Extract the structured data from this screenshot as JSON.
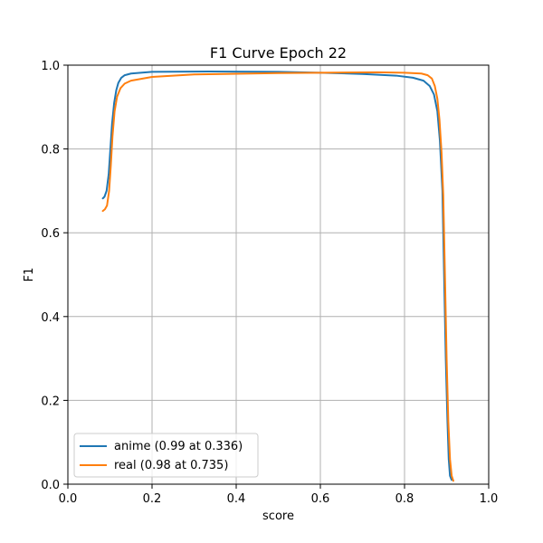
{
  "chart_data": {
    "type": "line",
    "title": "F1 Curve Epoch 22",
    "xlabel": "score",
    "ylabel": "F1",
    "xlim": [
      0.0,
      1.0
    ],
    "ylim": [
      0.0,
      1.0
    ],
    "xticks": [
      "0.0",
      "0.2",
      "0.4",
      "0.6",
      "0.8",
      "1.0"
    ],
    "yticks": [
      "0.0",
      "0.2",
      "0.4",
      "0.6",
      "0.8",
      "1.0"
    ],
    "grid": true,
    "legend_position": "lower-left",
    "series": [
      {
        "name": "anime (0.99 at 0.336)",
        "color": "#1f77b4",
        "points": [
          [
            0.083,
            0.682
          ],
          [
            0.087,
            0.686
          ],
          [
            0.092,
            0.7
          ],
          [
            0.097,
            0.74
          ],
          [
            0.101,
            0.8
          ],
          [
            0.105,
            0.86
          ],
          [
            0.11,
            0.91
          ],
          [
            0.115,
            0.94
          ],
          [
            0.12,
            0.958
          ],
          [
            0.127,
            0.97
          ],
          [
            0.135,
            0.976
          ],
          [
            0.15,
            0.98
          ],
          [
            0.2,
            0.984
          ],
          [
            0.336,
            0.985
          ],
          [
            0.5,
            0.984
          ],
          [
            0.6,
            0.982
          ],
          [
            0.7,
            0.979
          ],
          [
            0.78,
            0.975
          ],
          [
            0.82,
            0.97
          ],
          [
            0.845,
            0.963
          ],
          [
            0.86,
            0.95
          ],
          [
            0.87,
            0.93
          ],
          [
            0.878,
            0.89
          ],
          [
            0.884,
            0.82
          ],
          [
            0.89,
            0.7
          ],
          [
            0.894,
            0.5
          ],
          [
            0.898,
            0.3
          ],
          [
            0.902,
            0.15
          ],
          [
            0.905,
            0.06
          ],
          [
            0.908,
            0.02
          ],
          [
            0.912,
            0.01
          ]
        ]
      },
      {
        "name": "real (0.98 at 0.735)",
        "color": "#ff7f0e",
        "points": [
          [
            0.083,
            0.652
          ],
          [
            0.088,
            0.656
          ],
          [
            0.093,
            0.665
          ],
          [
            0.098,
            0.7
          ],
          [
            0.102,
            0.76
          ],
          [
            0.106,
            0.83
          ],
          [
            0.111,
            0.89
          ],
          [
            0.117,
            0.925
          ],
          [
            0.125,
            0.945
          ],
          [
            0.135,
            0.956
          ],
          [
            0.15,
            0.963
          ],
          [
            0.2,
            0.972
          ],
          [
            0.3,
            0.978
          ],
          [
            0.5,
            0.981
          ],
          [
            0.6,
            0.982
          ],
          [
            0.735,
            0.983
          ],
          [
            0.8,
            0.982
          ],
          [
            0.84,
            0.98
          ],
          [
            0.855,
            0.976
          ],
          [
            0.865,
            0.968
          ],
          [
            0.872,
            0.95
          ],
          [
            0.878,
            0.92
          ],
          [
            0.883,
            0.87
          ],
          [
            0.888,
            0.79
          ],
          [
            0.892,
            0.69
          ],
          [
            0.896,
            0.5
          ],
          [
            0.9,
            0.3
          ],
          [
            0.904,
            0.15
          ],
          [
            0.908,
            0.06
          ],
          [
            0.912,
            0.02
          ],
          [
            0.916,
            0.008
          ]
        ]
      }
    ]
  }
}
